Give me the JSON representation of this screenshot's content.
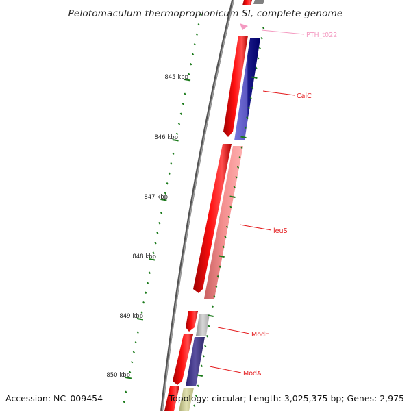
{
  "title": "Pelotomaculum thermopropionicum SI, complete genome",
  "footer": {
    "accession": "Accession: NC_009454",
    "topology": "Topology: circular; Length: 3,025,375 bp; Genes: 2,975"
  },
  "ticks": [
    {
      "label": "845 kbp"
    },
    {
      "label": "846 kbp"
    },
    {
      "label": "847 kbp"
    },
    {
      "label": "848 kbp"
    },
    {
      "label": "849 kbp"
    },
    {
      "label": "850 kbp"
    }
  ],
  "gene_labels": [
    {
      "name": "PTH_t022",
      "color": "#f49ac1"
    },
    {
      "name": "CaiC",
      "color": "#e41a1c"
    },
    {
      "name": "leuS",
      "color": "#e41a1c"
    },
    {
      "name": "ModE",
      "color": "#e41a1c"
    },
    {
      "name": "ModA",
      "color": "#e41a1c"
    }
  ],
  "colors": {
    "backbone": "#808080",
    "cds": "#ff0000",
    "trna": "#f49ac1",
    "tick": "#1a7a1a",
    "cog_blue": "#2222aa",
    "cog_pink": "#f08080",
    "cog_grey": "#c0c0c0",
    "cog_purple": "#4a3f8f",
    "cog_olive": "#c8c896"
  }
}
